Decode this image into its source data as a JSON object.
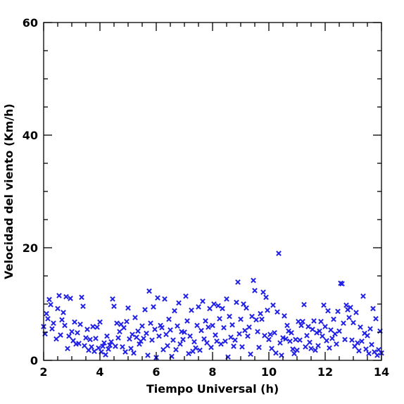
{
  "chart_data": {
    "type": "scatter",
    "title": "",
    "xlabel": "Tiempo Universal (h)",
    "ylabel": "Velocidad del viento (Km/h)",
    "xlim": [
      2,
      14
    ],
    "ylim": [
      0,
      60
    ],
    "x_ticks": [
      "2",
      "4",
      "6",
      "8",
      "10",
      "12",
      "14"
    ],
    "y_ticks": [
      "0",
      "20",
      "40",
      "60"
    ],
    "grid": false,
    "marker_color": "#1f1fe8",
    "marker": "x",
    "points": [
      [
        2.0,
        6.0
      ],
      [
        2.05,
        4.7
      ],
      [
        2.1,
        8.3
      ],
      [
        2.15,
        7.4
      ],
      [
        2.2,
        10.8
      ],
      [
        2.25,
        9.9
      ],
      [
        2.3,
        5.6
      ],
      [
        2.35,
        6.6
      ],
      [
        2.45,
        3.8
      ],
      [
        2.5,
        9.2
      ],
      [
        2.55,
        11.5
      ],
      [
        2.6,
        4.5
      ],
      [
        2.65,
        7.2
      ],
      [
        2.7,
        8.5
      ],
      [
        2.75,
        6.2
      ],
      [
        2.8,
        11.3
      ],
      [
        2.85,
        2.1
      ],
      [
        2.9,
        4.3
      ],
      [
        2.95,
        11.0
      ],
      [
        3.0,
        5.1
      ],
      [
        3.05,
        3.5
      ],
      [
        3.1,
        6.8
      ],
      [
        3.15,
        2.9
      ],
      [
        3.2,
        4.9
      ],
      [
        3.25,
        3.0
      ],
      [
        3.3,
        6.4
      ],
      [
        3.35,
        11.2
      ],
      [
        3.4,
        9.6
      ],
      [
        3.45,
        2.6
      ],
      [
        3.5,
        4.0
      ],
      [
        3.55,
        5.5
      ],
      [
        3.6,
        1.8
      ],
      [
        3.65,
        3.7
      ],
      [
        3.7,
        2.4
      ],
      [
        3.75,
        6.0
      ],
      [
        3.8,
        1.6
      ],
      [
        3.85,
        3.9
      ],
      [
        3.9,
        5.9
      ],
      [
        3.95,
        2.2
      ],
      [
        4.0,
        6.8
      ],
      [
        4.05,
        1.5
      ],
      [
        4.1,
        2.5
      ],
      [
        4.15,
        3.1
      ],
      [
        4.2,
        1.0
      ],
      [
        4.25,
        4.3
      ],
      [
        4.3,
        2.0
      ],
      [
        4.35,
        2.7
      ],
      [
        4.4,
        3.3
      ],
      [
        4.45,
        10.9
      ],
      [
        4.5,
        9.6
      ],
      [
        4.55,
        2.5
      ],
      [
        4.6,
        6.6
      ],
      [
        4.65,
        4.0
      ],
      [
        4.7,
        5.1
      ],
      [
        4.75,
        6.4
      ],
      [
        4.8,
        2.4
      ],
      [
        4.85,
        5.8
      ],
      [
        4.9,
        1.5
      ],
      [
        4.95,
        6.9
      ],
      [
        5.0,
        9.3
      ],
      [
        5.05,
        3.8
      ],
      [
        5.1,
        2.1
      ],
      [
        5.15,
        4.6
      ],
      [
        5.2,
        1.3
      ],
      [
        5.25,
        7.6
      ],
      [
        5.3,
        4.1
      ],
      [
        5.35,
        5.2
      ],
      [
        5.4,
        2.9
      ],
      [
        5.45,
        3.4
      ],
      [
        5.5,
        6.1
      ],
      [
        5.55,
        3.9
      ],
      [
        5.6,
        9.0
      ],
      [
        5.65,
        4.8
      ],
      [
        5.7,
        0.9
      ],
      [
        5.75,
        12.3
      ],
      [
        5.8,
        6.6
      ],
      [
        5.85,
        3.6
      ],
      [
        5.9,
        9.5
      ],
      [
        5.95,
        5.5
      ],
      [
        6.0,
        0.5
      ],
      [
        6.05,
        11.1
      ],
      [
        6.1,
        4.3
      ],
      [
        6.15,
        6.2
      ],
      [
        6.2,
        5.8
      ],
      [
        6.25,
        1.9
      ],
      [
        6.3,
        10.9
      ],
      [
        6.35,
        4.6
      ],
      [
        6.4,
        2.6
      ],
      [
        6.45,
        7.3
      ],
      [
        6.5,
        5.4
      ],
      [
        6.55,
        0.7
      ],
      [
        6.6,
        3.6
      ],
      [
        6.65,
        8.8
      ],
      [
        6.7,
        1.9
      ],
      [
        6.75,
        6.1
      ],
      [
        6.8,
        10.2
      ],
      [
        6.85,
        2.9
      ],
      [
        6.9,
        5.1
      ],
      [
        6.95,
        3.7
      ],
      [
        7.0,
        5.0
      ],
      [
        7.05,
        11.4
      ],
      [
        7.1,
        7.0
      ],
      [
        7.15,
        1.2
      ],
      [
        7.2,
        4.3
      ],
      [
        7.25,
        8.9
      ],
      [
        7.3,
        1.6
      ],
      [
        7.35,
        3.3
      ],
      [
        7.4,
        2.2
      ],
      [
        7.45,
        6.2
      ],
      [
        7.5,
        9.5
      ],
      [
        7.55,
        1.8
      ],
      [
        7.6,
        5.3
      ],
      [
        7.65,
        10.5
      ],
      [
        7.7,
        3.8
      ],
      [
        7.75,
        7.0
      ],
      [
        7.8,
        3.1
      ],
      [
        7.85,
        5.9
      ],
      [
        7.9,
        9.2
      ],
      [
        7.95,
        2.3
      ],
      [
        8.0,
        6.2
      ],
      [
        8.05,
        10.0
      ],
      [
        8.1,
        4.5
      ],
      [
        8.15,
        3.4
      ],
      [
        8.2,
        9.7
      ],
      [
        8.25,
        7.4
      ],
      [
        8.3,
        2.9
      ],
      [
        8.35,
        9.2
      ],
      [
        8.4,
        5.8
      ],
      [
        8.45,
        3.4
      ],
      [
        8.5,
        10.9
      ],
      [
        8.55,
        0.6
      ],
      [
        8.6,
        7.8
      ],
      [
        8.65,
        4.1
      ],
      [
        8.7,
        6.3
      ],
      [
        8.75,
        2.5
      ],
      [
        8.8,
        3.6
      ],
      [
        8.85,
        10.3
      ],
      [
        8.9,
        13.9
      ],
      [
        8.95,
        4.7
      ],
      [
        9.0,
        7.3
      ],
      [
        9.05,
        2.4
      ],
      [
        9.1,
        10.0
      ],
      [
        9.15,
        5.3
      ],
      [
        9.2,
        9.3
      ],
      [
        9.25,
        4.3
      ],
      [
        9.3,
        5.9
      ],
      [
        9.35,
        1.1
      ],
      [
        9.4,
        7.8
      ],
      [
        9.45,
        14.2
      ],
      [
        9.5,
        12.4
      ],
      [
        9.55,
        7.2
      ],
      [
        9.6,
        5.1
      ],
      [
        9.65,
        2.3
      ],
      [
        9.7,
        8.3
      ],
      [
        9.75,
        7.3
      ],
      [
        9.8,
        12.1
      ],
      [
        9.85,
        4.4
      ],
      [
        9.9,
        11.2
      ],
      [
        9.95,
        8.9
      ],
      [
        10.0,
        3.7
      ],
      [
        10.05,
        4.6
      ],
      [
        10.1,
        2.1
      ],
      [
        10.15,
        9.8
      ],
      [
        10.2,
        4.9
      ],
      [
        10.25,
        1.3
      ],
      [
        10.3,
        8.6
      ],
      [
        10.35,
        19.0
      ],
      [
        10.4,
        3.1
      ],
      [
        10.45,
        0.9
      ],
      [
        10.5,
        4.0
      ],
      [
        10.55,
        7.9
      ],
      [
        10.6,
        3.8
      ],
      [
        10.65,
        6.2
      ],
      [
        10.7,
        5.2
      ],
      [
        10.75,
        3.4
      ],
      [
        10.8,
        4.9
      ],
      [
        10.85,
        2.0
      ],
      [
        10.9,
        1.2
      ],
      [
        10.95,
        3.7
      ],
      [
        11.0,
        1.8
      ],
      [
        11.05,
        6.9
      ],
      [
        11.1,
        3.6
      ],
      [
        11.15,
        6.2
      ],
      [
        11.2,
        6.9
      ],
      [
        11.25,
        9.9
      ],
      [
        11.3,
        2.4
      ],
      [
        11.35,
        4.4
      ],
      [
        11.4,
        6.0
      ],
      [
        11.45,
        3.2
      ],
      [
        11.5,
        2.1
      ],
      [
        11.55,
        5.5
      ],
      [
        11.6,
        7.0
      ],
      [
        11.65,
        1.8
      ],
      [
        11.7,
        4.9
      ],
      [
        11.75,
        2.6
      ],
      [
        11.8,
        5.2
      ],
      [
        11.85,
        6.9
      ],
      [
        11.9,
        4.3
      ],
      [
        11.95,
        9.8
      ],
      [
        12.0,
        6.0
      ],
      [
        12.05,
        3.5
      ],
      [
        12.1,
        8.8
      ],
      [
        12.15,
        2.2
      ],
      [
        12.2,
        5.4
      ],
      [
        12.25,
        3.9
      ],
      [
        12.3,
        7.3
      ],
      [
        12.35,
        4.7
      ],
      [
        12.4,
        2.9
      ],
      [
        12.45,
        8.7
      ],
      [
        12.5,
        5.2
      ],
      [
        12.55,
        13.7
      ],
      [
        12.6,
        13.6
      ],
      [
        12.65,
        6.6
      ],
      [
        12.7,
        3.7
      ],
      [
        12.75,
        9.8
      ],
      [
        12.8,
        9.0
      ],
      [
        12.85,
        7.6
      ],
      [
        12.9,
        9.4
      ],
      [
        12.95,
        3.6
      ],
      [
        13.0,
        6.7
      ],
      [
        13.05,
        2.5
      ],
      [
        13.1,
        8.5
      ],
      [
        13.15,
        3.1
      ],
      [
        13.2,
        1.7
      ],
      [
        13.25,
        5.9
      ],
      [
        13.3,
        3.4
      ],
      [
        13.35,
        11.4
      ],
      [
        13.4,
        4.8
      ],
      [
        13.45,
        2.0
      ],
      [
        13.5,
        4.4
      ],
      [
        13.55,
        1.2
      ],
      [
        13.6,
        5.6
      ],
      [
        13.65,
        2.8
      ],
      [
        13.7,
        9.2
      ],
      [
        13.75,
        1.5
      ],
      [
        13.8,
        7.4
      ],
      [
        13.85,
        0.9
      ],
      [
        13.9,
        1.9
      ],
      [
        13.95,
        5.2
      ],
      [
        14.0,
        1.3
      ]
    ]
  }
}
